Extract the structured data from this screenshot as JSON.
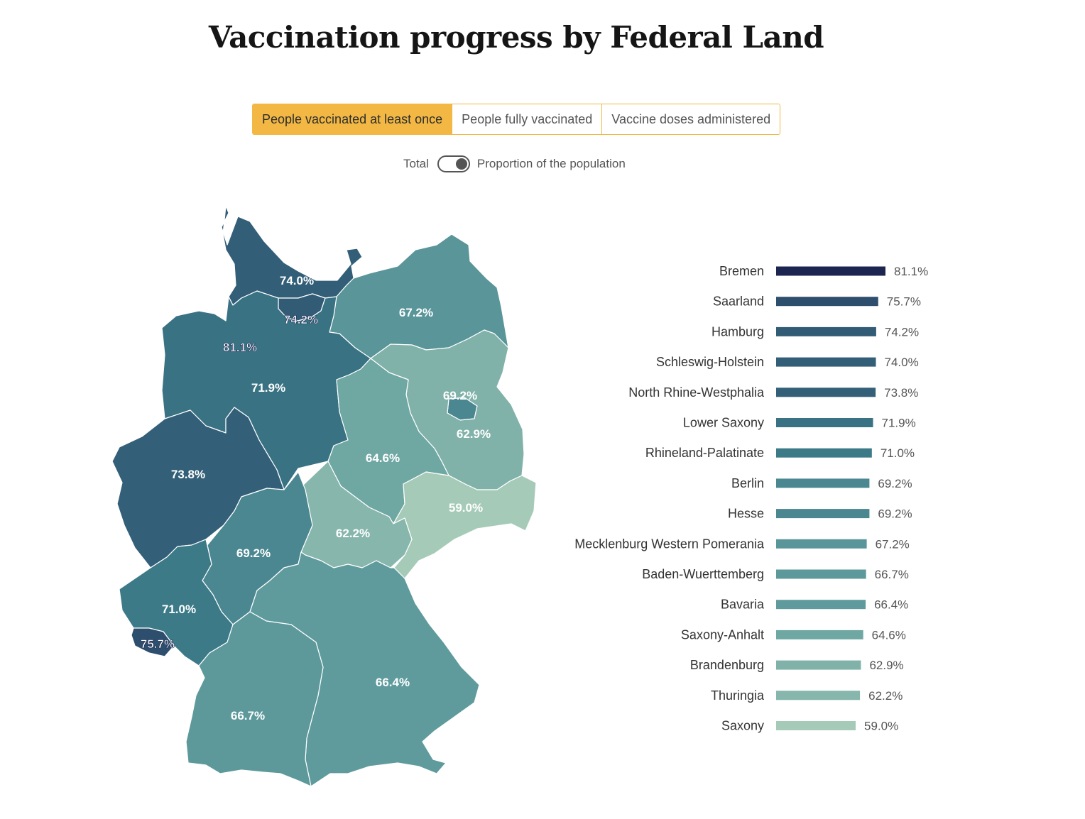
{
  "title": "Vaccination progress by Federal Land",
  "tabs": [
    {
      "label": "People vaccinated at least once",
      "active": true
    },
    {
      "label": "People fully vaccinated",
      "active": false
    },
    {
      "label": "Vaccine doses administered",
      "active": false
    }
  ],
  "toggle": {
    "left_label": "Total",
    "right_label": "Proportion of the population",
    "state": "right"
  },
  "colors": {
    "accent": "#f2b843",
    "scale_dark": "#1b2550",
    "scale_light": "#a5cbb8"
  },
  "chart_data": [
    {
      "type": "map",
      "states": [
        {
          "name": "Schleswig-Holstein",
          "label": "74.0%",
          "value": 74.0
        },
        {
          "name": "Hamburg",
          "label": "74.2%",
          "value": 74.2
        },
        {
          "name": "Mecklenburg Western Pomerania",
          "label": "67.2%",
          "value": 67.2
        },
        {
          "name": "Bremen",
          "label": "81.1%",
          "value": 81.1
        },
        {
          "name": "Lower Saxony",
          "label": "71.9%",
          "value": 71.9
        },
        {
          "name": "Berlin",
          "label": "69.2%",
          "value": 69.2
        },
        {
          "name": "Brandenburg",
          "label": "62.9%",
          "value": 62.9
        },
        {
          "name": "North Rhine-Westphalia",
          "label": "73.8%",
          "value": 73.8
        },
        {
          "name": "Saxony-Anhalt",
          "label": "64.6%",
          "value": 64.6
        },
        {
          "name": "Saxony",
          "label": "59.0%",
          "value": 59.0
        },
        {
          "name": "Thuringia",
          "label": "62.2%",
          "value": 62.2
        },
        {
          "name": "Hesse",
          "label": "69.2%",
          "value": 69.2
        },
        {
          "name": "Rhineland-Palatinate",
          "label": "71.0%",
          "value": 71.0
        },
        {
          "name": "Saarland",
          "label": "75.7%",
          "value": 75.7
        },
        {
          "name": "Bavaria",
          "label": "66.4%",
          "value": 66.4
        },
        {
          "name": "Baden-Wuerttemberg",
          "label": "66.7%",
          "value": 66.7
        }
      ]
    },
    {
      "type": "bar",
      "orientation": "horizontal",
      "categories": [
        "Bremen",
        "Saarland",
        "Hamburg",
        "Schleswig-Holstein",
        "North Rhine-Westphalia",
        "Lower Saxony",
        "Rhineland-Palatinate",
        "Berlin",
        "Hesse",
        "Mecklenburg Western Pomerania",
        "Baden-Wuerttemberg",
        "Bavaria",
        "Saxony-Anhalt",
        "Brandenburg",
        "Thuringia",
        "Saxony"
      ],
      "values": [
        81.1,
        75.7,
        74.2,
        74.0,
        73.8,
        71.9,
        71.0,
        69.2,
        69.2,
        67.2,
        66.7,
        66.4,
        64.6,
        62.9,
        62.2,
        59.0
      ],
      "labels": [
        "81.1%",
        "75.7%",
        "74.2%",
        "74.0%",
        "73.8%",
        "71.9%",
        "71.0%",
        "69.2%",
        "69.2%",
        "67.2%",
        "66.7%",
        "66.4%",
        "64.6%",
        "62.9%",
        "62.2%",
        "59.0%"
      ],
      "unit": "%"
    }
  ]
}
